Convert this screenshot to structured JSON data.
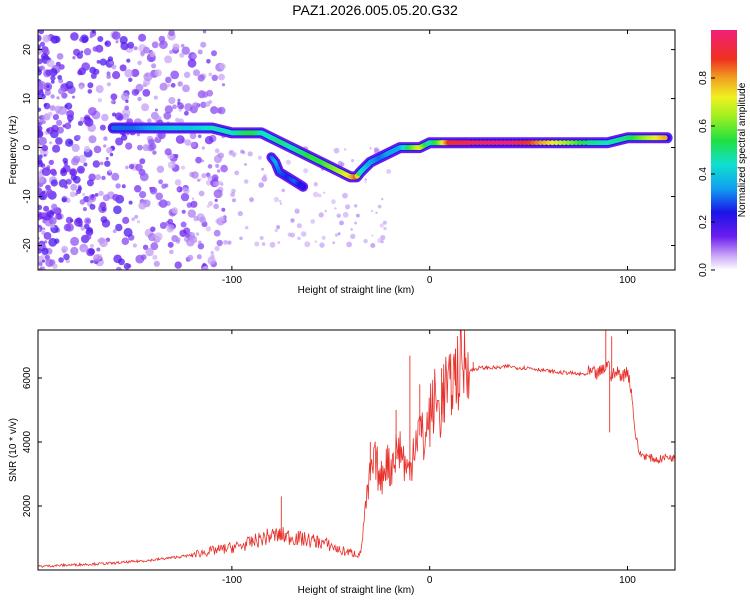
{
  "title": "PAZ1.2026.005.05.20.G32",
  "chart_data": [
    {
      "type": "heatmap",
      "xlabel": "Height of straight line (km)",
      "ylabel": "Frequency (Hz)",
      "xlim": [
        -198,
        124
      ],
      "ylim": [
        -25,
        24
      ],
      "xticks": [
        -100,
        0,
        100
      ],
      "xtick_labels": [
        "-100",
        "0",
        "100"
      ],
      "yticks": [
        -20,
        -10,
        0,
        10,
        20
      ],
      "ytick_labels": [
        "-20",
        "-10",
        "0",
        "10",
        "20"
      ],
      "colorbar": {
        "label": "Normalized spectral amplitude",
        "range": [
          0.0,
          1.0
        ],
        "ticks": [
          0.0,
          0.2,
          0.4,
          0.6,
          0.8
        ],
        "tick_labels": [
          "0.0",
          "0.2",
          "0.4",
          "0.6",
          "0.8"
        ]
      },
      "ridge": {
        "x": [
          -160,
          -150,
          -140,
          -130,
          -120,
          -110,
          -100,
          -95,
          -90,
          -85,
          -80,
          -75,
          -70,
          -65,
          -60,
          -55,
          -50,
          -45,
          -40,
          -37,
          -35,
          -30,
          -25,
          -20,
          -15,
          -10,
          -5,
          0,
          5,
          10,
          20,
          40,
          60,
          80,
          90,
          100,
          110,
          120
        ],
        "y": [
          4,
          4,
          4,
          4,
          4,
          4,
          3,
          3,
          3,
          3,
          2,
          1,
          0,
          -1,
          -2,
          -3,
          -4,
          -5,
          -6,
          -6,
          -5,
          -3,
          -2,
          -1,
          0,
          0,
          0,
          1,
          1,
          1,
          1,
          1,
          1,
          1,
          1,
          2,
          2,
          2
        ],
        "amp": [
          0.3,
          0.3,
          0.35,
          0.4,
          0.4,
          0.45,
          0.45,
          0.5,
          0.55,
          0.45,
          0.45,
          0.5,
          0.45,
          0.5,
          0.55,
          0.55,
          0.6,
          0.65,
          0.75,
          0.85,
          0.45,
          0.35,
          0.3,
          0.35,
          0.35,
          0.55,
          0.7,
          0.45,
          0.6,
          0.9,
          0.95,
          1.0,
          0.75,
          0.5,
          0.45,
          0.5,
          0.65,
          0.8
        ]
      },
      "branch": {
        "x": [
          -80,
          -78,
          -76,
          -72,
          -68,
          -64
        ],
        "y": [
          -2,
          -3,
          -5,
          -6,
          -7,
          -8
        ],
        "amp": [
          0.3,
          0.35,
          0.3,
          0.25,
          0.3,
          0.2
        ]
      }
    },
    {
      "type": "line",
      "xlabel": "Height of straight line (km)",
      "ylabel": "SNR (10 * v/v)",
      "xlim": [
        -198,
        124
      ],
      "ylim": [
        0,
        7500
      ],
      "xticks": [
        -100,
        0,
        100
      ],
      "xtick_labels": [
        "-100",
        "0",
        "100"
      ],
      "yticks": [
        2000,
        4000,
        6000
      ],
      "ytick_labels": [
        "2000",
        "4000",
        "6000"
      ],
      "series": [
        {
          "name": "SNR",
          "color": "#e8302a",
          "x": [
            -198,
            -180,
            -160,
            -140,
            -120,
            -110,
            -100,
            -95,
            -90,
            -85,
            -80,
            -75,
            -70,
            -65,
            -60,
            -55,
            -50,
            -45,
            -40,
            -35,
            -33,
            -30,
            -27,
            -25,
            -22,
            -20,
            -18,
            -15,
            -12,
            -10,
            -8,
            -5,
            -3,
            0,
            3,
            5,
            8,
            10,
            12,
            15,
            18,
            20,
            25,
            30,
            35,
            40,
            45,
            50,
            55,
            60,
            65,
            70,
            75,
            80,
            85,
            88,
            90,
            92,
            95,
            98,
            100,
            102,
            104,
            106,
            110,
            115,
            120,
            124
          ],
          "y": [
            100,
            150,
            200,
            300,
            450,
            550,
            650,
            700,
            800,
            900,
            1000,
            1000,
            950,
            900,
            850,
            800,
            700,
            550,
            500,
            450,
            1500,
            2800,
            3200,
            2500,
            3300,
            2900,
            3400,
            3600,
            3000,
            2800,
            3800,
            4200,
            3700,
            4500,
            5000,
            4600,
            5400,
            5200,
            5700,
            5900,
            6100,
            6200,
            6300,
            6300,
            6300,
            6350,
            6300,
            6300,
            6250,
            6200,
            6150,
            6150,
            6100,
            6100,
            6050,
            6200,
            6400,
            6000,
            6100,
            6000,
            6200,
            5500,
            4200,
            3600,
            3500,
            3400,
            3500,
            3450
          ],
          "spikes": [
            {
              "x": -10,
              "y": 6700
            },
            {
              "x": -5,
              "y": 5800
            },
            {
              "x": 6,
              "y": 6300
            },
            {
              "x": 13,
              "y": 6900
            },
            {
              "x": 22,
              "y": 6500
            },
            {
              "x": 89,
              "y": 7500
            },
            {
              "x": 92,
              "y": 7300
            },
            {
              "x": -75,
              "y": 2300
            },
            {
              "x": -30,
              "y": 4000
            },
            {
              "x": -17,
              "y": 5000
            },
            {
              "x": 91,
              "y": 4300
            }
          ]
        }
      ]
    }
  ]
}
